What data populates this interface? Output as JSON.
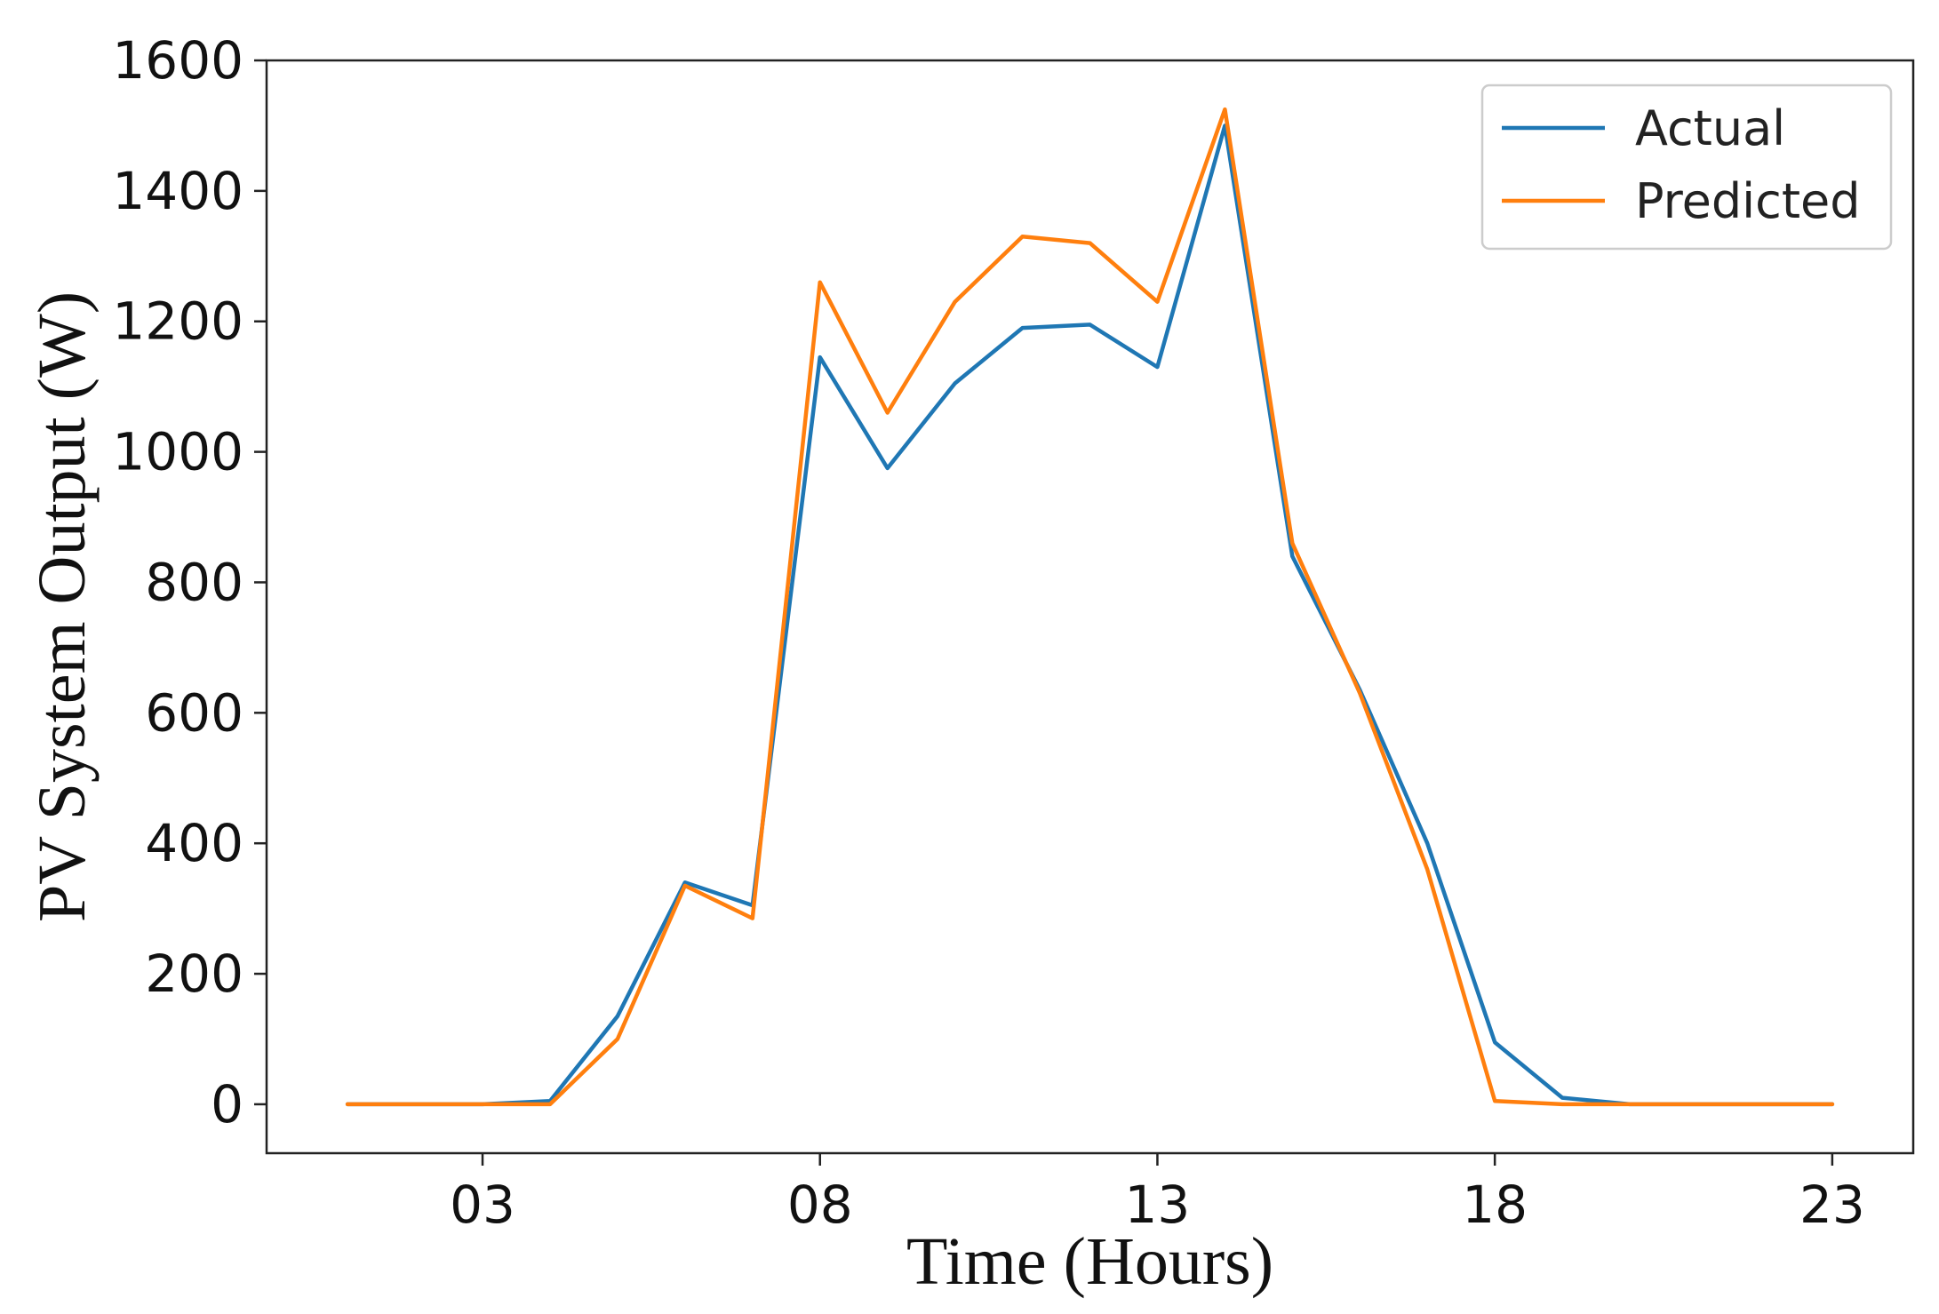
{
  "chart_data": {
    "type": "line",
    "xlabel": "Time (Hours)",
    "ylabel": "PV System Output (W)",
    "x": [
      1,
      2,
      3,
      4,
      5,
      6,
      7,
      8,
      9,
      10,
      11,
      12,
      13,
      14,
      15,
      16,
      17,
      18,
      19,
      20,
      21,
      22,
      23
    ],
    "x_ticks": [
      3,
      8,
      13,
      18,
      23
    ],
    "x_tick_labels": [
      "03",
      "08",
      "13",
      "18",
      "23"
    ],
    "xlim": [
      -0.2,
      24.2
    ],
    "ylim": [
      -75,
      1600
    ],
    "y_ticks": [
      0,
      200,
      400,
      600,
      800,
      1000,
      1200,
      1400,
      1600
    ],
    "y_tick_labels": [
      "0",
      "200",
      "400",
      "600",
      "800",
      "1000",
      "1200",
      "1400",
      "1600"
    ],
    "grid": false,
    "legend_position": "top-right",
    "series": [
      {
        "name": "Actual",
        "color": "#1f77b4",
        "values": [
          0,
          0,
          0,
          5,
          135,
          340,
          305,
          1145,
          975,
          1105,
          1190,
          1195,
          1130,
          1500,
          840,
          635,
          400,
          95,
          10,
          0,
          0,
          0,
          0
        ]
      },
      {
        "name": "Predicted",
        "color": "#ff7f0e",
        "values": [
          0,
          0,
          0,
          0,
          100,
          335,
          285,
          1260,
          1060,
          1230,
          1330,
          1320,
          1230,
          1525,
          860,
          630,
          360,
          5,
          0,
          0,
          0,
          0,
          0
        ]
      }
    ]
  }
}
